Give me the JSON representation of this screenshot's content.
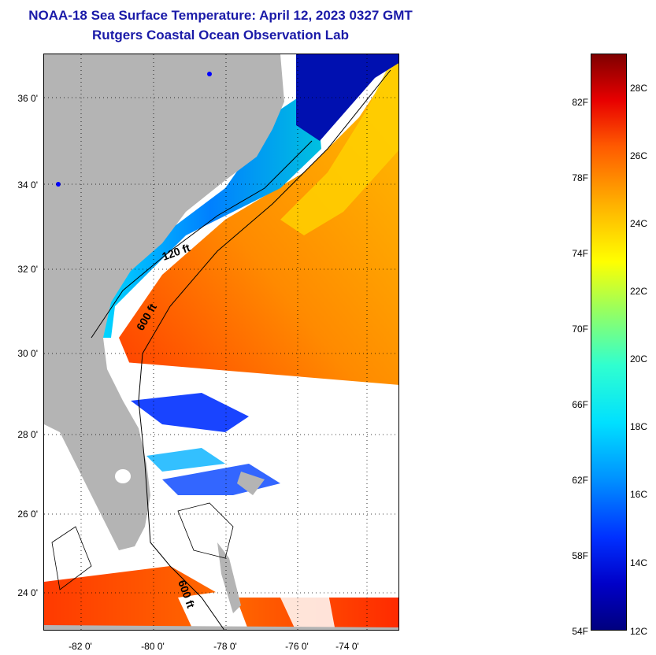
{
  "header": {
    "title": "NOAA-18 Sea Surface Temperature:  April 12, 2023 0327 GMT",
    "subtitle": "Rutgers Coastal Ocean Observation Lab"
  },
  "map": {
    "latitude_labels": [
      "36 0'",
      "34 0'",
      "32 0'",
      "30 0'",
      "28 0'",
      "26 0'",
      "24 0'"
    ],
    "longitude_labels": [
      "-82 0'",
      "-80 0'",
      "-78 0'",
      "-76 0'",
      "-74 0'"
    ],
    "contour_labels": [
      "120 ft",
      "600 ft",
      "600 ft"
    ],
    "colors": {
      "land": "#b4b4b4",
      "no_data": "#ffffff",
      "cold_shelf": "#0020c0",
      "warm_gulfstream": "#ff7a00"
    }
  },
  "colorbar": {
    "fahrenheit_labels": [
      "82F",
      "78F",
      "74F",
      "70F",
      "66F",
      "62F",
      "58F",
      "54F"
    ],
    "celsius_labels": [
      "28C",
      "26C",
      "24C",
      "22C",
      "20C",
      "18C",
      "16C",
      "14C",
      "12C"
    ]
  }
}
